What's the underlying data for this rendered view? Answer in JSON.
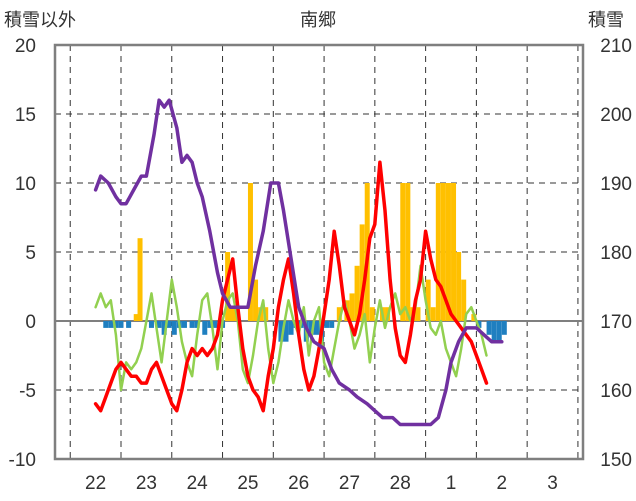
{
  "chart_data": {
    "type": "line",
    "title": "南郷",
    "left_axis_label": "積雪以外",
    "right_axis_label": "積雪",
    "left_ylim": [
      -10,
      20
    ],
    "right_ylim": [
      150,
      210
    ],
    "left_ticks": [
      "20",
      "15",
      "10",
      "5",
      "0",
      "-5",
      "-10"
    ],
    "right_ticks": [
      "210",
      "200",
      "190",
      "180",
      "170",
      "160",
      "150"
    ],
    "x_labels": [
      "22",
      "23",
      "24",
      "25",
      "26",
      "27",
      "28",
      "1",
      "2",
      "3"
    ],
    "grid": true,
    "colors": {
      "snow_depth": "#7030a0",
      "temperature": "#ff0000",
      "wind": "#92d050",
      "precip_pos": "#ffc000",
      "precip_neg": "#1f7fc0",
      "axis": "#7f7f7f"
    },
    "series": [
      {
        "key": "snow_depth",
        "axis": "right",
        "points": [
          [
            0.0,
            189
          ],
          [
            0.2,
            191
          ],
          [
            0.5,
            190
          ],
          [
            0.8,
            188
          ],
          [
            1.0,
            187
          ],
          [
            1.2,
            187
          ],
          [
            1.5,
            189
          ],
          [
            1.8,
            191
          ],
          [
            2.0,
            191
          ],
          [
            2.3,
            197
          ],
          [
            2.5,
            202
          ],
          [
            2.7,
            201
          ],
          [
            2.9,
            202
          ],
          [
            3.2,
            198
          ],
          [
            3.4,
            193
          ],
          [
            3.6,
            194
          ],
          [
            3.8,
            193
          ],
          [
            4.0,
            190
          ],
          [
            4.2,
            188
          ],
          [
            4.5,
            183
          ],
          [
            4.8,
            177
          ],
          [
            5.0,
            174
          ],
          [
            5.3,
            172
          ],
          [
            5.6,
            172
          ],
          [
            6.0,
            172
          ],
          [
            6.3,
            178
          ],
          [
            6.6,
            183
          ],
          [
            6.9,
            190
          ],
          [
            7.2,
            190
          ],
          [
            7.4,
            186
          ],
          [
            7.7,
            179
          ],
          [
            8.0,
            172
          ],
          [
            8.3,
            169
          ],
          [
            8.6,
            167
          ],
          [
            9.0,
            166
          ],
          [
            9.3,
            163
          ],
          [
            9.6,
            161
          ],
          [
            10.0,
            160
          ],
          [
            10.3,
            159
          ],
          [
            10.7,
            158
          ],
          [
            11.0,
            157
          ],
          [
            11.3,
            156
          ],
          [
            11.7,
            156
          ],
          [
            12.0,
            155
          ],
          [
            12.4,
            155
          ],
          [
            12.8,
            155
          ],
          [
            13.2,
            155
          ],
          [
            13.5,
            156
          ],
          [
            13.8,
            160
          ],
          [
            14.0,
            164
          ],
          [
            14.3,
            167
          ],
          [
            14.6,
            169
          ],
          [
            15.0,
            169
          ],
          [
            15.3,
            168
          ],
          [
            15.6,
            167
          ],
          [
            16.0,
            167
          ]
        ]
      },
      {
        "key": "temperature",
        "axis": "left",
        "points": [
          [
            0.0,
            -6
          ],
          [
            0.2,
            -6.5
          ],
          [
            0.4,
            -5.5
          ],
          [
            0.6,
            -4.5
          ],
          [
            0.8,
            -3.5
          ],
          [
            1.0,
            -3
          ],
          [
            1.2,
            -3.5
          ],
          [
            1.4,
            -4
          ],
          [
            1.6,
            -4
          ],
          [
            1.8,
            -4.5
          ],
          [
            2.0,
            -4.5
          ],
          [
            2.2,
            -3.5
          ],
          [
            2.4,
            -3
          ],
          [
            2.6,
            -4
          ],
          [
            2.8,
            -5
          ],
          [
            3.0,
            -6
          ],
          [
            3.2,
            -6.5
          ],
          [
            3.4,
            -5
          ],
          [
            3.6,
            -3
          ],
          [
            3.8,
            -2
          ],
          [
            4.0,
            -2.5
          ],
          [
            4.2,
            -2
          ],
          [
            4.4,
            -2.5
          ],
          [
            4.6,
            -2
          ],
          [
            4.8,
            -1
          ],
          [
            5.0,
            1.5
          ],
          [
            5.2,
            3
          ],
          [
            5.4,
            4.5
          ],
          [
            5.6,
            1
          ],
          [
            5.8,
            -2
          ],
          [
            6.0,
            -4
          ],
          [
            6.2,
            -5
          ],
          [
            6.4,
            -5.5
          ],
          [
            6.6,
            -6.5
          ],
          [
            6.8,
            -4
          ],
          [
            7.0,
            -2
          ],
          [
            7.2,
            1
          ],
          [
            7.4,
            3
          ],
          [
            7.6,
            4.5
          ],
          [
            7.8,
            2
          ],
          [
            8.0,
            -1
          ],
          [
            8.2,
            -3.5
          ],
          [
            8.4,
            -5
          ],
          [
            8.6,
            -4
          ],
          [
            8.8,
            -2
          ],
          [
            9.0,
            0.5
          ],
          [
            9.2,
            3
          ],
          [
            9.4,
            6.5
          ],
          [
            9.6,
            4
          ],
          [
            9.8,
            1
          ],
          [
            10.0,
            0
          ],
          [
            10.2,
            -1
          ],
          [
            10.4,
            0.5
          ],
          [
            10.6,
            3
          ],
          [
            10.8,
            6
          ],
          [
            11.0,
            7
          ],
          [
            11.2,
            11.5
          ],
          [
            11.4,
            8
          ],
          [
            11.6,
            3
          ],
          [
            11.8,
            -0.5
          ],
          [
            12.0,
            -2.5
          ],
          [
            12.2,
            -3
          ],
          [
            12.4,
            -1
          ],
          [
            12.6,
            1.5
          ],
          [
            12.8,
            3
          ],
          [
            13.0,
            6.5
          ],
          [
            13.2,
            4.5
          ],
          [
            13.4,
            3
          ],
          [
            13.6,
            2.5
          ],
          [
            13.8,
            1.5
          ],
          [
            14.0,
            0.5
          ],
          [
            14.2,
            0
          ],
          [
            14.4,
            -0.5
          ],
          [
            14.6,
            -1
          ],
          [
            14.8,
            -1.5
          ],
          [
            15.0,
            -2.5
          ],
          [
            15.2,
            -3.5
          ],
          [
            15.4,
            -4.5
          ]
        ]
      },
      {
        "key": "wind",
        "axis": "left",
        "points": [
          [
            0.0,
            1
          ],
          [
            0.2,
            2
          ],
          [
            0.4,
            1
          ],
          [
            0.6,
            1.5
          ],
          [
            0.8,
            -1
          ],
          [
            1.0,
            -5
          ],
          [
            1.2,
            -3
          ],
          [
            1.4,
            -3.5
          ],
          [
            1.6,
            -3
          ],
          [
            1.8,
            -2
          ],
          [
            2.0,
            0
          ],
          [
            2.2,
            2
          ],
          [
            2.4,
            -0.5
          ],
          [
            2.6,
            -3
          ],
          [
            2.8,
            0
          ],
          [
            3.0,
            3
          ],
          [
            3.2,
            1
          ],
          [
            3.4,
            -1.5
          ],
          [
            3.6,
            -3
          ],
          [
            3.8,
            -4
          ],
          [
            4.0,
            -1
          ],
          [
            4.2,
            1.5
          ],
          [
            4.4,
            2
          ],
          [
            4.6,
            -0.5
          ],
          [
            4.8,
            -3.5
          ],
          [
            5.0,
            0
          ],
          [
            5.2,
            1.5
          ],
          [
            5.4,
            2
          ],
          [
            5.6,
            0
          ],
          [
            5.8,
            -3.5
          ],
          [
            6.0,
            -4.5
          ],
          [
            6.2,
            -2.5
          ],
          [
            6.4,
            0
          ],
          [
            6.6,
            1.5
          ],
          [
            6.8,
            -2
          ],
          [
            7.0,
            -4.5
          ],
          [
            7.2,
            -3
          ],
          [
            7.4,
            -0.5
          ],
          [
            7.6,
            1.5
          ],
          [
            7.8,
            0
          ],
          [
            8.0,
            -1
          ],
          [
            8.2,
            1
          ],
          [
            8.4,
            -2.5
          ],
          [
            8.6,
            0
          ],
          [
            8.8,
            1
          ],
          [
            9.0,
            -3
          ],
          [
            9.2,
            -4
          ],
          [
            9.4,
            -2
          ],
          [
            9.6,
            0
          ],
          [
            9.8,
            1.5
          ],
          [
            10.0,
            0
          ],
          [
            10.2,
            -2
          ],
          [
            10.4,
            -1
          ],
          [
            10.6,
            0.5
          ],
          [
            10.8,
            -3
          ],
          [
            11.0,
            -0.5
          ],
          [
            11.2,
            1.5
          ],
          [
            11.4,
            -0.5
          ],
          [
            11.6,
            1
          ],
          [
            11.8,
            2
          ],
          [
            12.0,
            0.5
          ],
          [
            12.2,
            1
          ],
          [
            12.4,
            0
          ],
          [
            12.6,
            1
          ],
          [
            12.8,
            4
          ],
          [
            13.0,
            1.5
          ],
          [
            13.2,
            -0.5
          ],
          [
            13.4,
            -1
          ],
          [
            13.6,
            0
          ],
          [
            13.8,
            -2
          ],
          [
            14.0,
            -3
          ],
          [
            14.2,
            -4
          ],
          [
            14.4,
            -2
          ],
          [
            14.6,
            0.5
          ],
          [
            14.8,
            1
          ],
          [
            15.0,
            0
          ],
          [
            15.2,
            -1
          ],
          [
            15.4,
            -2.5
          ]
        ]
      },
      {
        "key": "precip",
        "axis": "left",
        "bars": [
          [
            0.4,
            -0.5
          ],
          [
            0.6,
            -0.5
          ],
          [
            0.8,
            -0.5
          ],
          [
            1.0,
            -0.5
          ],
          [
            1.3,
            -0.5
          ],
          [
            1.6,
            0.5
          ],
          [
            1.75,
            6
          ],
          [
            2.2,
            -0.5
          ],
          [
            2.5,
            -0.5
          ],
          [
            2.7,
            -1
          ],
          [
            2.9,
            -0.5
          ],
          [
            3.1,
            -1
          ],
          [
            3.3,
            -0.5
          ],
          [
            3.5,
            -0.5
          ],
          [
            3.8,
            -0.5
          ],
          [
            4.0,
            -0.5
          ],
          [
            4.3,
            -1
          ],
          [
            4.5,
            -0.5
          ],
          [
            4.7,
            -0.5
          ],
          [
            5.0,
            -0.5
          ],
          [
            5.2,
            5
          ],
          [
            5.35,
            1
          ],
          [
            5.5,
            1
          ],
          [
            6.1,
            10
          ],
          [
            6.3,
            3
          ],
          [
            6.5,
            1
          ],
          [
            6.7,
            1
          ],
          [
            7.3,
            -1.5
          ],
          [
            7.5,
            -1.5
          ],
          [
            7.7,
            -1
          ],
          [
            7.9,
            -0.5
          ],
          [
            8.1,
            -0.5
          ],
          [
            8.3,
            -1.5
          ],
          [
            8.5,
            -1
          ],
          [
            8.7,
            -1
          ],
          [
            8.9,
            -1.5
          ],
          [
            9.1,
            -0.5
          ],
          [
            9.3,
            -0.5
          ],
          [
            9.6,
            1
          ],
          [
            9.9,
            1.5
          ],
          [
            10.1,
            2
          ],
          [
            10.3,
            4
          ],
          [
            10.5,
            7
          ],
          [
            10.7,
            10
          ],
          [
            10.9,
            1
          ],
          [
            11.3,
            1
          ],
          [
            11.5,
            1
          ],
          [
            12.1,
            10
          ],
          [
            12.3,
            10
          ],
          [
            12.5,
            1
          ],
          [
            12.7,
            1
          ],
          [
            13.1,
            3
          ],
          [
            13.3,
            1
          ],
          [
            13.5,
            10
          ],
          [
            13.7,
            10
          ],
          [
            13.9,
            10
          ],
          [
            14.1,
            10
          ],
          [
            14.3,
            5
          ],
          [
            14.5,
            3
          ],
          [
            14.9,
            0.5
          ],
          [
            15.1,
            -0.5
          ],
          [
            15.5,
            -1
          ],
          [
            15.7,
            -1.5
          ],
          [
            15.9,
            -1.5
          ],
          [
            16.1,
            -1
          ]
        ]
      }
    ]
  }
}
